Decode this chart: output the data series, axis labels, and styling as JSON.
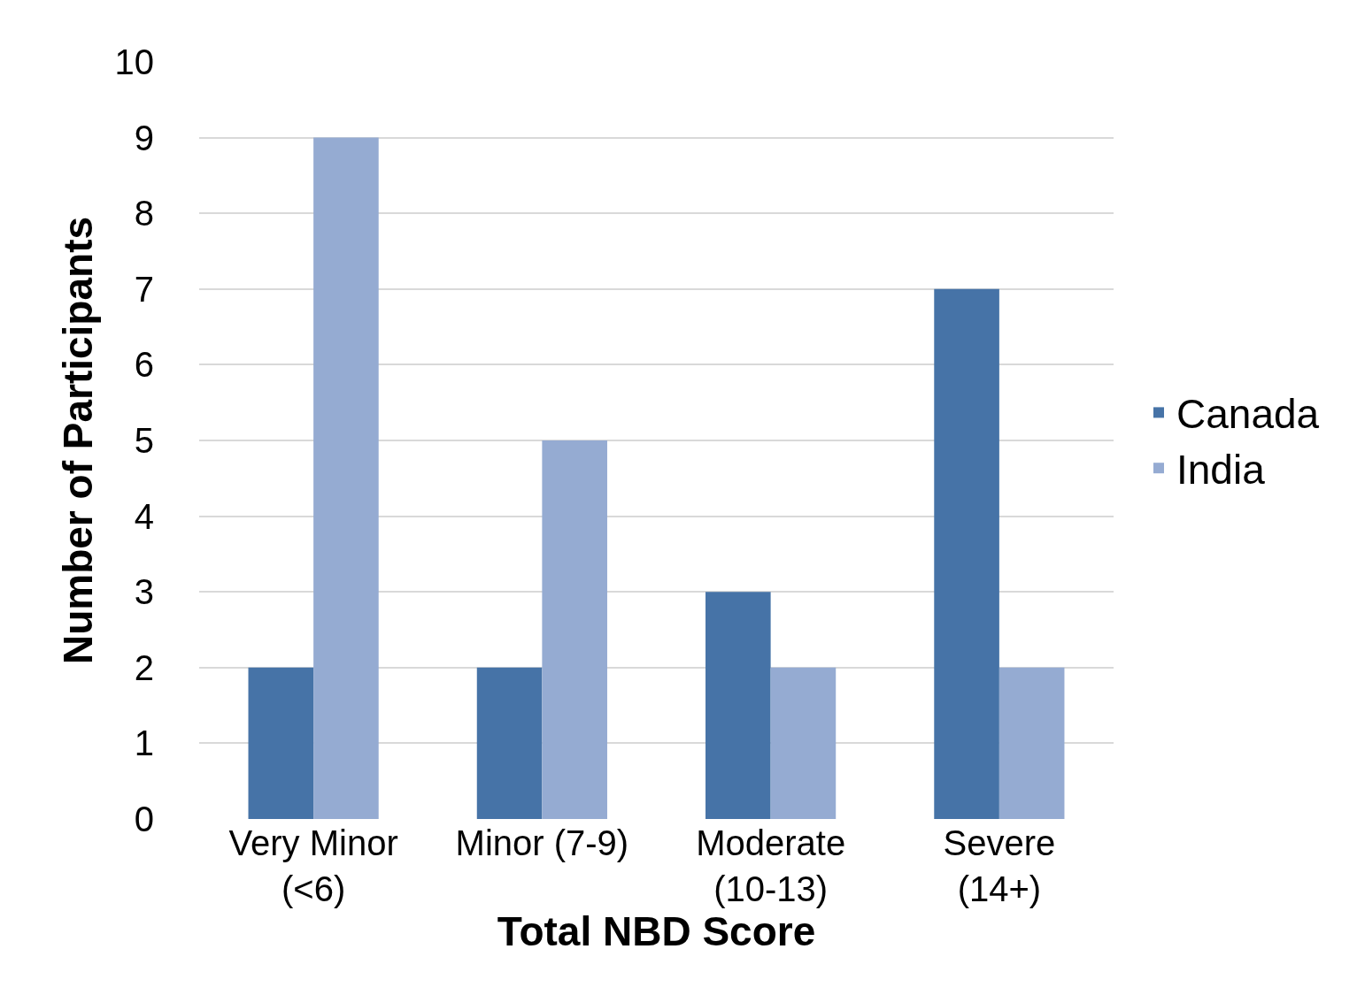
{
  "chart_data": {
    "type": "bar",
    "xlabel": "Total NBD Score",
    "ylabel": "Number of Participants",
    "categories": [
      "Very Minor\n(<6)",
      "Minor (7-9)",
      "Moderate\n(10-13)",
      "Severe\n(14+)"
    ],
    "series": [
      {
        "name": "Canada",
        "color": "#4673a7",
        "values": [
          2,
          2,
          3,
          7
        ]
      },
      {
        "name": "India",
        "color": "#95abd2",
        "values": [
          9,
          5,
          2,
          2
        ]
      }
    ],
    "ylim": [
      0,
      10
    ],
    "yticks": [
      0,
      1,
      2,
      3,
      4,
      5,
      6,
      7,
      8,
      9,
      10
    ],
    "grid": "y",
    "legend": "right"
  }
}
